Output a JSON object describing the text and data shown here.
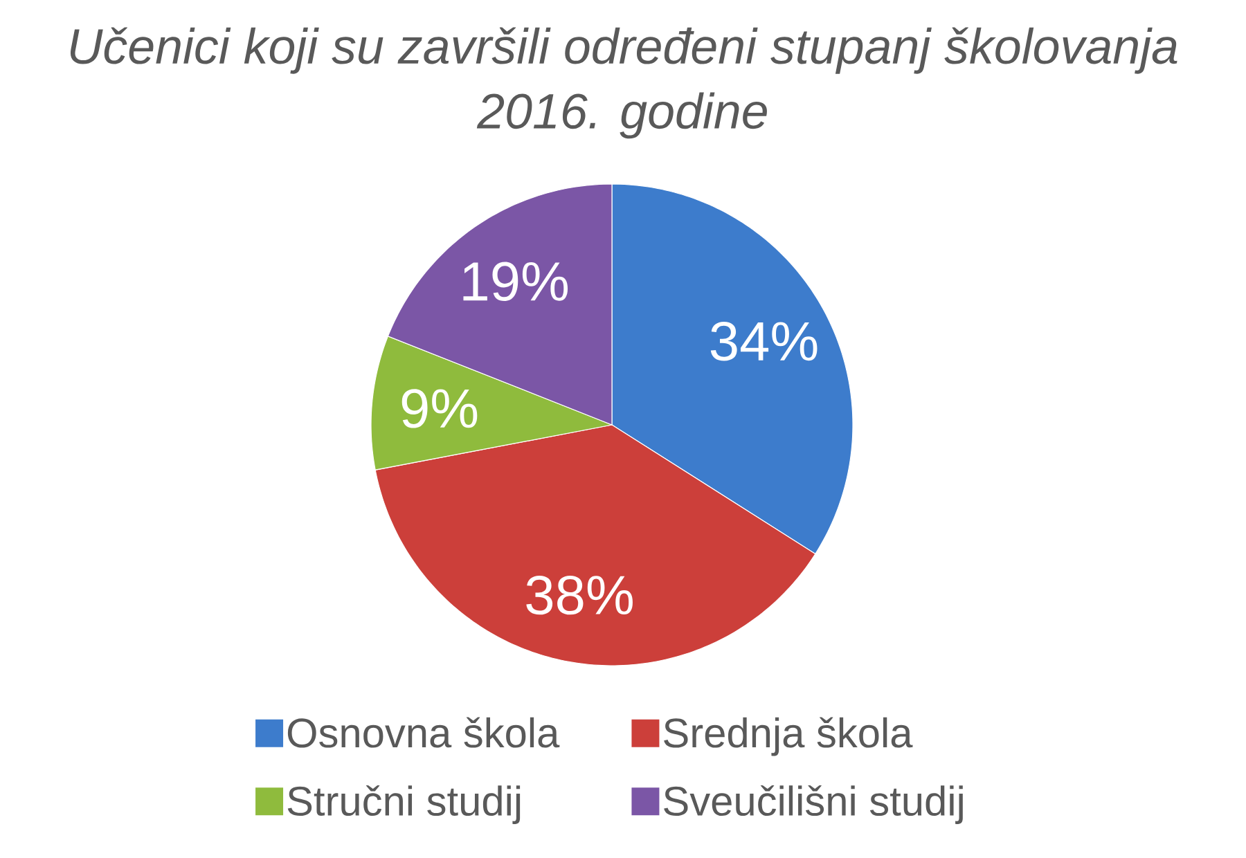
{
  "chart_data": {
    "type": "pie",
    "title": "Učenici koji su završili određeni stupanj školovanja 2016. godine",
    "categories": [
      "Osnovna škola",
      "Srednja škola",
      "Stručni studij",
      "Sveučilišni studij"
    ],
    "values": [
      34,
      38,
      9,
      19
    ],
    "colors": [
      "#3d7ccc",
      "#cc3f3a",
      "#8fbb3d",
      "#7b56a6"
    ],
    "value_labels": [
      "34%",
      "38%",
      "9%",
      "19%"
    ],
    "legend": "bottom"
  }
}
